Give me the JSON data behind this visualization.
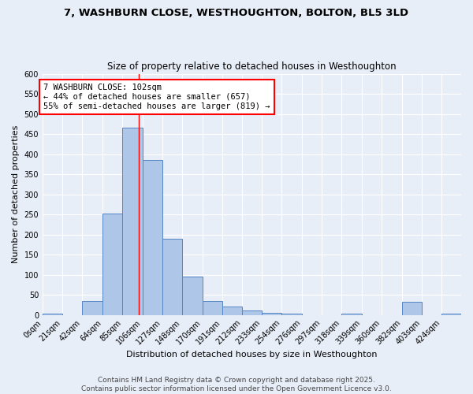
{
  "title_line1": "7, WASHBURN CLOSE, WESTHOUGHTON, BOLTON, BL5 3LD",
  "title_line2": "Size of property relative to detached houses in Westhoughton",
  "xlabel": "Distribution of detached houses by size in Westhoughton",
  "ylabel": "Number of detached properties",
  "bin_edges": [
    0,
    21,
    42,
    64,
    85,
    106,
    127,
    148,
    170,
    191,
    212,
    233,
    254,
    276,
    297,
    318,
    339,
    360,
    382,
    403,
    424,
    445
  ],
  "bin_labels": [
    "0sqm",
    "21sqm",
    "42sqm",
    "64sqm",
    "85sqm",
    "106sqm",
    "127sqm",
    "148sqm",
    "170sqm",
    "191sqm",
    "212sqm",
    "233sqm",
    "254sqm",
    "276sqm",
    "297sqm",
    "318sqm",
    "339sqm",
    "360sqm",
    "382sqm",
    "403sqm",
    "424sqm"
  ],
  "bar_heights": [
    3,
    0,
    35,
    253,
    465,
    385,
    190,
    95,
    35,
    20,
    12,
    5,
    3,
    0,
    0,
    4,
    0,
    0,
    33,
    0,
    3
  ],
  "bar_color": "#aec6e8",
  "bar_edge_color": "#5585c5",
  "red_line_x": 102,
  "ylim": [
    0,
    600
  ],
  "yticks": [
    0,
    50,
    100,
    150,
    200,
    250,
    300,
    350,
    400,
    450,
    500,
    550,
    600
  ],
  "annotation_text": "7 WASHBURN CLOSE: 102sqm\n← 44% of detached houses are smaller (657)\n55% of semi-detached houses are larger (819) →",
  "annotation_box_color": "white",
  "annotation_box_edge": "red",
  "footer_line1": "Contains HM Land Registry data © Crown copyright and database right 2025.",
  "footer_line2": "Contains public sector information licensed under the Open Government Licence v3.0.",
  "bg_color": "#e8eef8",
  "grid_color": "white",
  "title_fontsize": 9.5,
  "subtitle_fontsize": 8.5,
  "axis_label_fontsize": 8,
  "tick_fontsize": 7,
  "annotation_fontsize": 7.5,
  "footer_fontsize": 6.5
}
